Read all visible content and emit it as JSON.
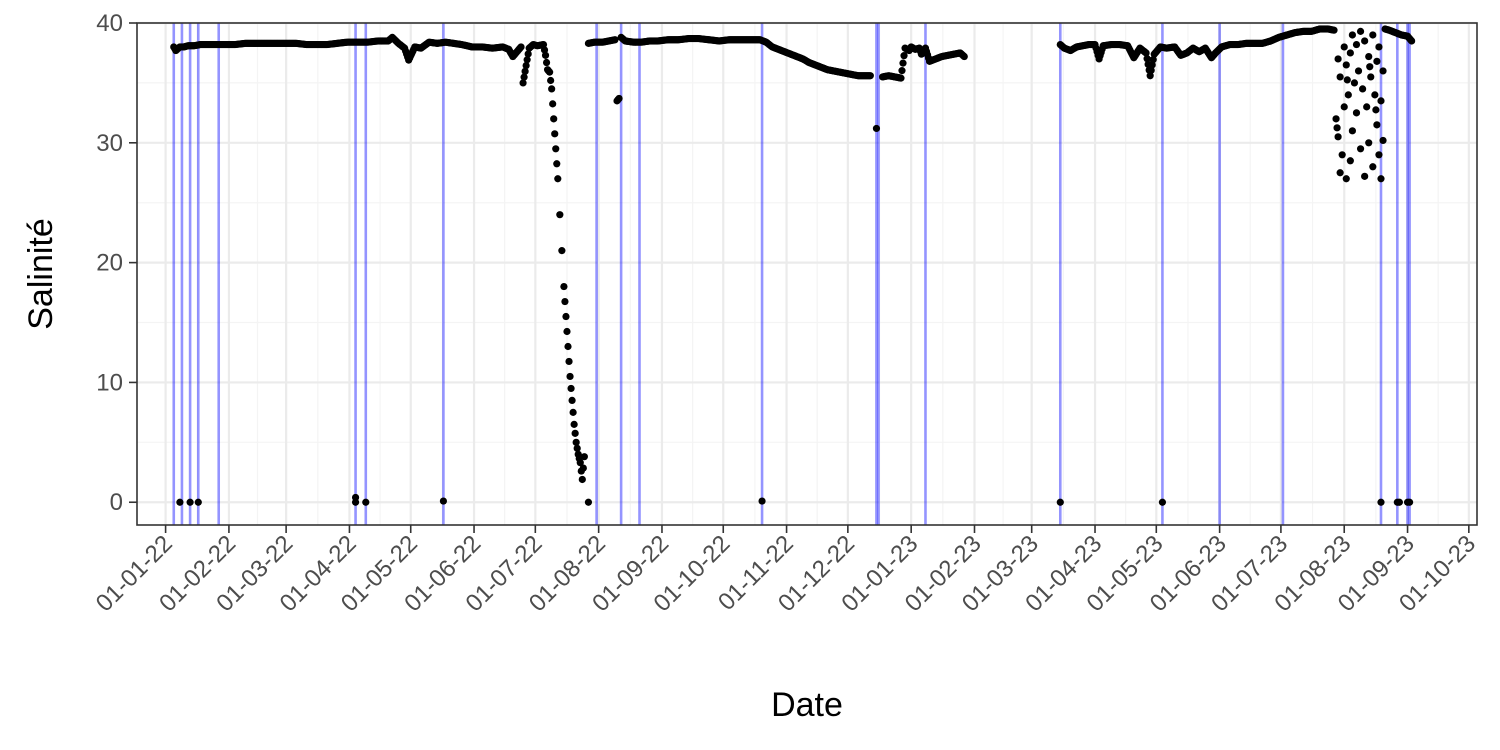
{
  "chart_data": {
    "type": "scatter",
    "title": "",
    "xlabel": "Date",
    "ylabel": "Salinité",
    "xlim": [
      "2021-12-18",
      "2023-10-05"
    ],
    "ylim": [
      -1.9,
      40.0
    ],
    "x_ticks": [
      {
        "date": "2022-01-01",
        "label": "01-01-22"
      },
      {
        "date": "2022-02-01",
        "label": "01-02-22"
      },
      {
        "date": "2022-03-01",
        "label": "01-03-22"
      },
      {
        "date": "2022-04-01",
        "label": "01-04-22"
      },
      {
        "date": "2022-05-01",
        "label": "01-05-22"
      },
      {
        "date": "2022-06-01",
        "label": "01-06-22"
      },
      {
        "date": "2022-07-01",
        "label": "01-07-22"
      },
      {
        "date": "2022-08-01",
        "label": "01-08-22"
      },
      {
        "date": "2022-09-01",
        "label": "01-09-22"
      },
      {
        "date": "2022-10-01",
        "label": "01-10-22"
      },
      {
        "date": "2022-11-01",
        "label": "01-11-22"
      },
      {
        "date": "2022-12-01",
        "label": "01-12-22"
      },
      {
        "date": "2023-01-01",
        "label": "01-01-23"
      },
      {
        "date": "2023-02-01",
        "label": "01-02-23"
      },
      {
        "date": "2023-03-01",
        "label": "01-03-23"
      },
      {
        "date": "2023-04-01",
        "label": "01-04-23"
      },
      {
        "date": "2023-05-01",
        "label": "01-05-23"
      },
      {
        "date": "2023-06-01",
        "label": "01-06-23"
      },
      {
        "date": "2023-07-01",
        "label": "01-07-23"
      },
      {
        "date": "2023-08-01",
        "label": "01-08-23"
      },
      {
        "date": "2023-09-01",
        "label": "01-09-23"
      },
      {
        "date": "2023-10-01",
        "label": "01-10-23"
      }
    ],
    "y_ticks": [
      0,
      10,
      20,
      30,
      40
    ],
    "grid": true,
    "legend": "none",
    "colors": {
      "points": "#000000",
      "vlines": "#0000ff",
      "grid_major": "#ebebeb",
      "grid_minor": "#f4f4f4",
      "panel_border": "#333333",
      "tick_text": "#4d4d4d"
    },
    "vertical_lines": [
      "2022-01-05",
      "2022-01-09",
      "2022-01-13",
      "2022-01-17",
      "2022-01-27",
      "2022-04-04",
      "2022-04-09",
      "2022-05-17",
      "2022-07-31",
      "2022-08-12",
      "2022-08-21",
      "2022-10-20",
      "2022-12-15",
      "2022-12-16",
      "2023-01-08",
      "2023-03-15",
      "2023-05-04",
      "2023-06-01",
      "2023-07-02",
      "2023-08-19",
      "2023-08-27",
      "2023-09-01",
      "2023-09-02"
    ],
    "series": [
      {
        "key": "salinity_main",
        "points": [
          [
            "2022-01-05",
            38.0
          ],
          [
            "2022-01-06",
            37.7
          ],
          [
            "2022-01-08",
            38.0
          ],
          [
            "2022-01-10",
            38.0
          ],
          [
            "2022-01-12",
            38.1
          ],
          [
            "2022-01-15",
            38.1
          ],
          [
            "2022-01-18",
            38.2
          ],
          [
            "2022-01-22",
            38.2
          ],
          [
            "2022-01-26",
            38.2
          ],
          [
            "2022-01-30",
            38.2
          ],
          [
            "2022-02-04",
            38.2
          ],
          [
            "2022-02-09",
            38.3
          ],
          [
            "2022-02-14",
            38.3
          ],
          [
            "2022-02-19",
            38.3
          ],
          [
            "2022-02-24",
            38.3
          ],
          [
            "2022-03-01",
            38.3
          ],
          [
            "2022-03-06",
            38.3
          ],
          [
            "2022-03-11",
            38.2
          ],
          [
            "2022-03-16",
            38.2
          ],
          [
            "2022-03-21",
            38.2
          ],
          [
            "2022-03-26",
            38.3
          ],
          [
            "2022-03-31",
            38.4
          ],
          [
            "2022-04-05",
            38.4
          ],
          [
            "2022-04-10",
            38.4
          ],
          [
            "2022-04-15",
            38.5
          ],
          [
            "2022-04-20",
            38.5
          ],
          [
            "2022-04-22",
            38.8
          ],
          [
            "2022-04-25",
            38.3
          ],
          [
            "2022-04-28",
            37.9
          ],
          [
            "2022-04-30",
            36.9
          ],
          [
            "2022-05-03",
            38.0
          ],
          [
            "2022-05-06",
            37.9
          ],
          [
            "2022-05-10",
            38.4
          ],
          [
            "2022-05-14",
            38.3
          ],
          [
            "2022-05-18",
            38.4
          ],
          [
            "2022-05-22",
            38.3
          ],
          [
            "2022-05-26",
            38.2
          ],
          [
            "2022-05-31",
            38.0
          ],
          [
            "2022-06-05",
            38.0
          ],
          [
            "2022-06-10",
            37.9
          ],
          [
            "2022-06-15",
            38.0
          ],
          [
            "2022-06-18",
            37.8
          ],
          [
            "2022-06-20",
            37.2
          ],
          [
            "2022-06-22",
            37.6
          ],
          [
            "2022-06-24",
            38.0
          ],
          [
            "2022-06-25",
            35.0
          ],
          [
            "2022-06-28",
            37.9
          ],
          [
            "2022-06-30",
            38.2
          ],
          [
            "2022-07-02",
            38.1
          ],
          [
            "2022-07-05",
            38.2
          ],
          [
            "2022-07-06",
            37.3
          ],
          [
            "2022-07-07",
            36.1
          ],
          [
            "2022-07-08",
            35.9
          ],
          [
            "2022-07-09",
            34.5
          ],
          [
            "2022-07-10",
            32.0
          ],
          [
            "2022-07-11",
            29.5
          ],
          [
            "2022-07-12",
            27.0
          ],
          [
            "2022-07-13",
            24.0
          ],
          [
            "2022-07-14",
            21.0
          ],
          [
            "2022-07-15",
            18.0
          ],
          [
            "2022-07-16",
            15.5
          ],
          [
            "2022-07-17",
            13.0
          ],
          [
            "2022-07-18",
            10.5
          ],
          [
            "2022-07-19",
            8.5
          ],
          [
            "2022-07-20",
            6.5
          ],
          [
            "2022-07-21",
            5.0
          ],
          [
            "2022-07-22",
            4.0
          ],
          [
            "2022-07-23",
            3.3
          ],
          [
            "2022-07-24",
            1.9
          ],
          [
            "2022-07-25",
            3.8
          ],
          [
            "2022-07-27",
            38.3
          ],
          [
            "2022-07-30",
            38.4
          ],
          [
            "2022-08-03",
            38.4
          ],
          [
            "2022-08-06",
            38.5
          ],
          [
            "2022-08-09",
            38.6
          ],
          [
            "2022-08-10",
            33.5
          ],
          [
            "2022-08-11",
            33.7
          ],
          [
            "2022-08-12",
            38.8
          ],
          [
            "2022-08-14",
            38.5
          ],
          [
            "2022-08-18",
            38.4
          ],
          [
            "2022-08-22",
            38.4
          ],
          [
            "2022-08-26",
            38.5
          ],
          [
            "2022-08-30",
            38.5
          ],
          [
            "2022-09-04",
            38.6
          ],
          [
            "2022-09-09",
            38.6
          ],
          [
            "2022-09-14",
            38.7
          ],
          [
            "2022-09-19",
            38.7
          ],
          [
            "2022-09-24",
            38.6
          ],
          [
            "2022-09-29",
            38.5
          ],
          [
            "2022-10-04",
            38.6
          ],
          [
            "2022-10-09",
            38.6
          ],
          [
            "2022-10-14",
            38.6
          ],
          [
            "2022-10-19",
            38.6
          ],
          [
            "2022-10-22",
            38.4
          ],
          [
            "2022-10-25",
            38.0
          ],
          [
            "2022-10-28",
            37.8
          ],
          [
            "2022-10-31",
            37.6
          ],
          [
            "2022-11-03",
            37.4
          ],
          [
            "2022-11-06",
            37.2
          ],
          [
            "2022-11-09",
            37.0
          ],
          [
            "2022-11-12",
            36.7
          ],
          [
            "2022-11-15",
            36.5
          ],
          [
            "2022-11-18",
            36.3
          ],
          [
            "2022-11-21",
            36.1
          ],
          [
            "2022-11-24",
            36.0
          ],
          [
            "2022-11-27",
            35.9
          ],
          [
            "2022-11-30",
            35.8
          ],
          [
            "2022-12-03",
            35.7
          ],
          [
            "2022-12-06",
            35.6
          ],
          [
            "2022-12-09",
            35.6
          ],
          [
            "2022-12-12",
            35.6
          ],
          [
            "2022-12-15",
            31.2
          ],
          [
            "2022-12-18",
            35.5
          ],
          [
            "2022-12-21",
            35.6
          ],
          [
            "2022-12-24",
            35.5
          ],
          [
            "2022-12-27",
            35.4
          ],
          [
            "2022-12-29",
            37.9
          ],
          [
            "2022-12-31",
            37.7
          ],
          [
            "2023-01-01",
            38.0
          ],
          [
            "2023-01-03",
            37.8
          ],
          [
            "2023-01-05",
            37.9
          ],
          [
            "2023-01-06",
            37.4
          ],
          [
            "2023-01-07",
            37.6
          ],
          [
            "2023-01-08",
            37.9
          ],
          [
            "2023-01-10",
            36.8
          ],
          [
            "2023-01-13",
            37.0
          ],
          [
            "2023-01-16",
            37.2
          ],
          [
            "2023-01-19",
            37.3
          ],
          [
            "2023-01-22",
            37.4
          ],
          [
            "2023-01-25",
            37.5
          ],
          [
            "2023-01-27",
            37.2
          ],
          [
            "2023-03-15",
            38.2
          ],
          [
            "2023-03-17",
            37.9
          ],
          [
            "2023-03-20",
            37.7
          ],
          [
            "2023-03-23",
            38.0
          ],
          [
            "2023-03-26",
            38.1
          ],
          [
            "2023-03-29",
            38.2
          ],
          [
            "2023-04-01",
            38.2
          ],
          [
            "2023-04-03",
            37.0
          ],
          [
            "2023-04-05",
            38.1
          ],
          [
            "2023-04-09",
            38.2
          ],
          [
            "2023-04-13",
            38.2
          ],
          [
            "2023-04-17",
            38.1
          ],
          [
            "2023-04-20",
            37.1
          ],
          [
            "2023-04-23",
            37.9
          ],
          [
            "2023-04-26",
            37.5
          ],
          [
            "2023-04-28",
            35.6
          ],
          [
            "2023-04-30",
            37.4
          ],
          [
            "2023-05-03",
            38.0
          ],
          [
            "2023-05-06",
            37.9
          ],
          [
            "2023-05-10",
            38.0
          ],
          [
            "2023-05-13",
            37.3
          ],
          [
            "2023-05-16",
            37.5
          ],
          [
            "2023-05-19",
            37.9
          ],
          [
            "2023-05-22",
            37.6
          ],
          [
            "2023-05-25",
            37.9
          ],
          [
            "2023-05-28",
            37.1
          ],
          [
            "2023-05-30",
            37.5
          ],
          [
            "2023-06-02",
            38.0
          ],
          [
            "2023-06-06",
            38.2
          ],
          [
            "2023-06-10",
            38.2
          ],
          [
            "2023-06-14",
            38.3
          ],
          [
            "2023-06-18",
            38.3
          ],
          [
            "2023-06-22",
            38.3
          ],
          [
            "2023-06-26",
            38.5
          ],
          [
            "2023-06-30",
            38.8
          ],
          [
            "2023-07-04",
            39.0
          ],
          [
            "2023-07-08",
            39.2
          ],
          [
            "2023-07-12",
            39.3
          ],
          [
            "2023-07-16",
            39.3
          ],
          [
            "2023-07-20",
            39.5
          ],
          [
            "2023-07-24",
            39.5
          ],
          [
            "2023-07-27",
            39.4
          ],
          [
            "2023-07-28",
            32.0
          ],
          [
            "2023-07-29",
            30.5
          ],
          [
            "2023-07-29",
            37.0
          ],
          [
            "2023-07-30",
            27.5
          ],
          [
            "2023-07-30",
            35.5
          ],
          [
            "2023-07-31",
            29.0
          ],
          [
            "2023-08-01",
            33.0
          ],
          [
            "2023-08-01",
            38.0
          ],
          [
            "2023-08-02",
            27.0
          ],
          [
            "2023-08-02",
            36.5
          ],
          [
            "2023-08-03",
            34.0
          ],
          [
            "2023-08-04",
            28.5
          ],
          [
            "2023-08-04",
            37.5
          ],
          [
            "2023-08-05",
            31.0
          ],
          [
            "2023-08-05",
            39.0
          ],
          [
            "2023-08-06",
            35.0
          ],
          [
            "2023-08-07",
            38.2
          ],
          [
            "2023-08-07",
            32.5
          ],
          [
            "2023-08-08",
            36.0
          ],
          [
            "2023-08-09",
            29.5
          ],
          [
            "2023-08-09",
            39.3
          ],
          [
            "2023-08-10",
            34.5
          ],
          [
            "2023-08-11",
            27.2
          ],
          [
            "2023-08-11",
            38.5
          ],
          [
            "2023-08-12",
            33.0
          ],
          [
            "2023-08-13",
            30.0
          ],
          [
            "2023-08-13",
            37.2
          ],
          [
            "2023-08-14",
            35.5
          ],
          [
            "2023-08-15",
            28.0
          ],
          [
            "2023-08-15",
            39.0
          ],
          [
            "2023-08-16",
            34.0
          ],
          [
            "2023-08-17",
            31.5
          ],
          [
            "2023-08-17",
            36.8
          ],
          [
            "2023-08-18",
            29.0
          ],
          [
            "2023-08-18",
            38.0
          ],
          [
            "2023-08-19",
            27.0
          ],
          [
            "2023-08-19",
            33.5
          ],
          [
            "2023-08-20",
            30.2
          ],
          [
            "2023-08-20",
            36.0
          ],
          [
            "2023-08-21",
            39.5
          ],
          [
            "2023-08-23",
            39.4
          ],
          [
            "2023-08-26",
            39.2
          ],
          [
            "2023-08-29",
            39.0
          ],
          [
            "2023-09-01",
            38.9
          ],
          [
            "2023-09-02",
            38.7
          ],
          [
            "2023-09-03",
            38.5
          ]
        ]
      },
      {
        "key": "salinity_zero",
        "points": [
          [
            "2022-01-08",
            0.0
          ],
          [
            "2022-01-13",
            0.0
          ],
          [
            "2022-01-17",
            0.0
          ],
          [
            "2022-04-04",
            0.4
          ],
          [
            "2022-04-04",
            0.0
          ],
          [
            "2022-04-09",
            0.0
          ],
          [
            "2022-05-17",
            0.1
          ],
          [
            "2022-07-27",
            0.0
          ],
          [
            "2022-10-20",
            0.1
          ],
          [
            "2023-03-15",
            0.0
          ],
          [
            "2023-05-04",
            0.0
          ],
          [
            "2023-08-19",
            0.0
          ],
          [
            "2023-08-27",
            0.0
          ],
          [
            "2023-08-28",
            0.0
          ],
          [
            "2023-09-01",
            0.0
          ],
          [
            "2023-09-02",
            0.0
          ]
        ]
      }
    ]
  }
}
